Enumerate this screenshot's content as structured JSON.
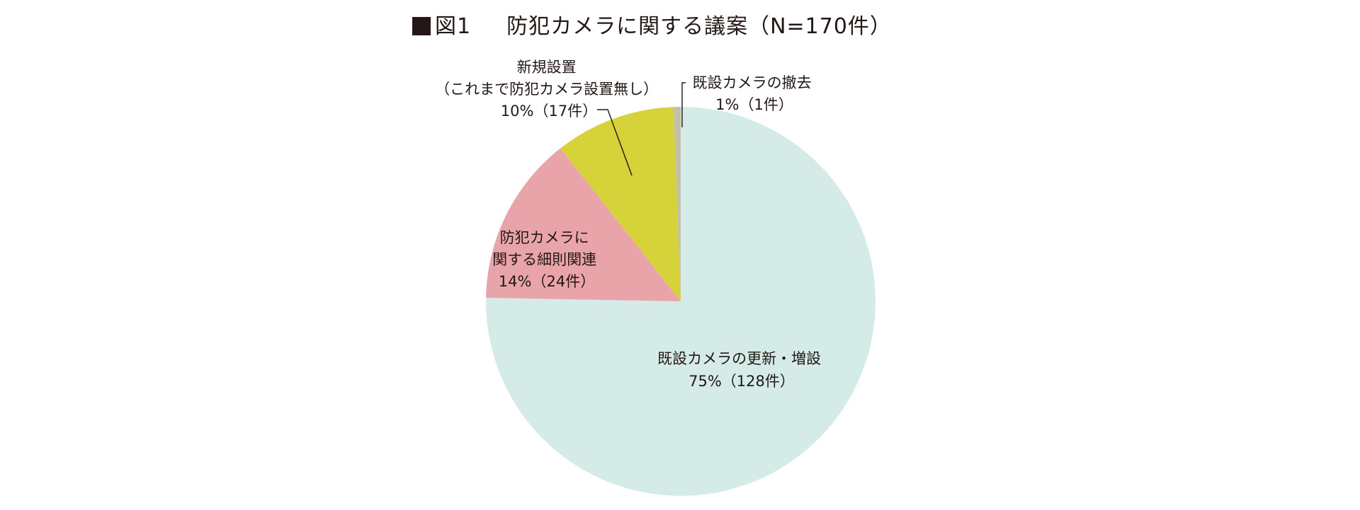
{
  "title": {
    "marker": "■",
    "figure_no": "図1",
    "text": "防犯カメラに関する議案（N=170件）"
  },
  "chart_data": {
    "type": "pie",
    "title": "防犯カメラに関する議案（N=170件）",
    "total_n": 170,
    "start_angle_deg": 0,
    "direction": "clockwise",
    "slices": [
      {
        "key": "renewal",
        "label_lines": [
          "既設カメラの更新・増設"
        ],
        "percent_label": "75%（128件）",
        "count": 128,
        "color": "#d5ebe7"
      },
      {
        "key": "rules",
        "label_lines": [
          "防犯カメラに",
          "関する細則関連"
        ],
        "percent_label": "14%（24件）",
        "count": 24,
        "color": "#e8a4a9"
      },
      {
        "key": "new",
        "label_lines": [
          "新規設置",
          "（これまで防犯カメラ設置無し）"
        ],
        "percent_label": "10%（17件）",
        "count": 17,
        "color": "#d6d23a"
      },
      {
        "key": "removal",
        "label_lines": [
          "既設カメラの撤去"
        ],
        "percent_label": "1%（1件）",
        "count": 1,
        "color": "#c2c0a6"
      }
    ]
  }
}
